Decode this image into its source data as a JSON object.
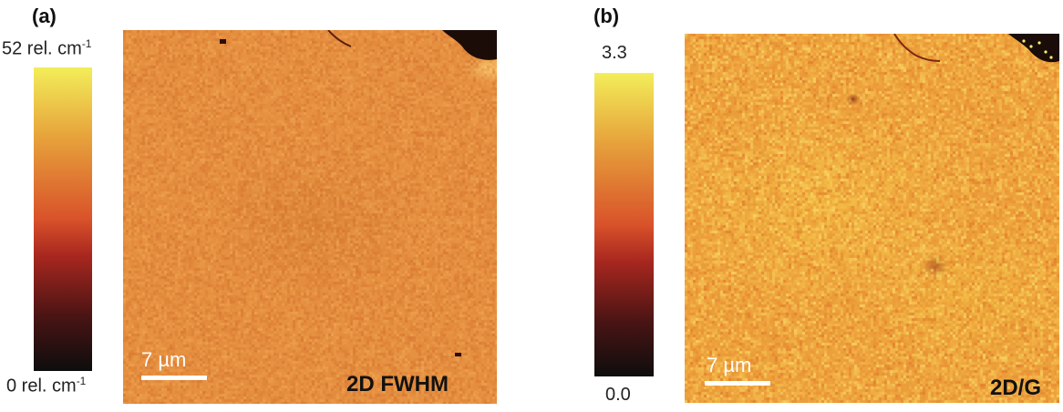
{
  "panel_a": {
    "label": "(a)",
    "colorbar": {
      "top_label": "52 rel. cm",
      "top_exp": "-1",
      "bottom_label": "0 rel. cm",
      "bottom_exp": "-1"
    },
    "scale_bar": "7 µm",
    "map_label": "2D FWHM",
    "base_color": "#e48d3e"
  },
  "panel_b": {
    "label": "(b)",
    "colorbar": {
      "top_label": "3.3",
      "bottom_label": "0.0"
    },
    "scale_bar": "7 µm",
    "map_label": "2D/G",
    "base_color": "#eea23d"
  },
  "colormap": [
    "#0d0d0d",
    "#4a1414",
    "#a8271f",
    "#d9522a",
    "#e7a53c",
    "#f3ee5a"
  ]
}
